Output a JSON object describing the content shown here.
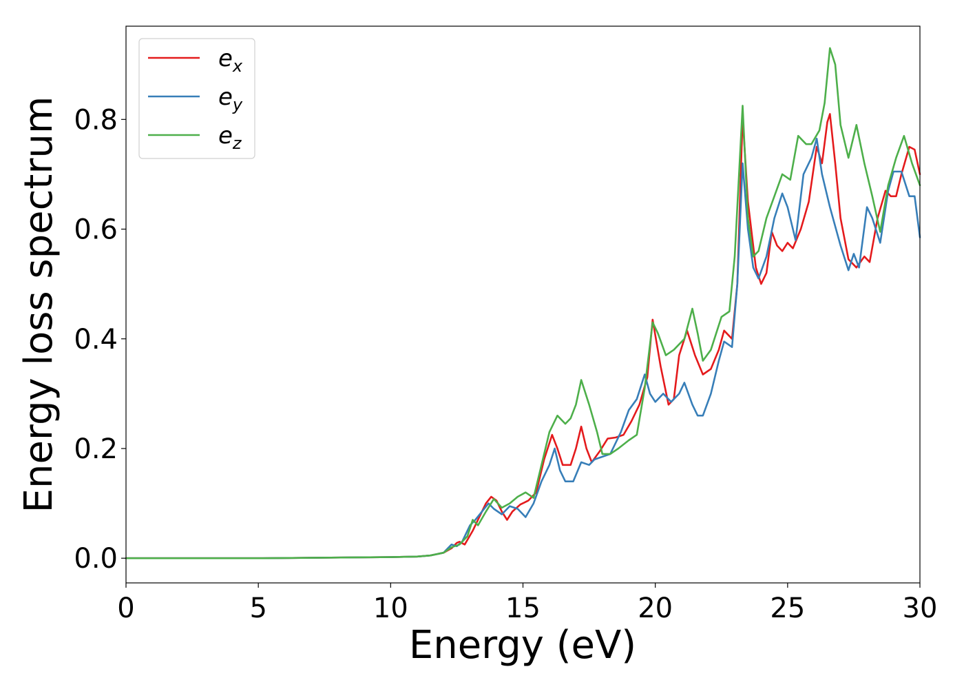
{
  "chart_data": {
    "type": "line",
    "xlabel": "Energy (eV)",
    "ylabel": "Energy loss spectrum",
    "xlim": [
      0,
      30
    ],
    "ylim": [
      -0.045,
      0.97
    ],
    "xticks": [
      0,
      5,
      10,
      15,
      20,
      25,
      30
    ],
    "xtick_labels": [
      "0",
      "5",
      "10",
      "15",
      "20",
      "25",
      "30"
    ],
    "yticks": [
      0.0,
      0.2,
      0.4,
      0.6,
      0.8
    ],
    "ytick_labels": [
      "0.0",
      "0.2",
      "0.4",
      "0.6",
      "0.8"
    ],
    "grid": false,
    "legend_position": "top-left",
    "series": [
      {
        "name": "e",
        "subscript": "x",
        "color": "#e41a1c",
        "points": [
          [
            0,
            0.0
          ],
          [
            5,
            0.0
          ],
          [
            10,
            0.002
          ],
          [
            11,
            0.003
          ],
          [
            11.5,
            0.005
          ],
          [
            12,
            0.01
          ],
          [
            12.3,
            0.018
          ],
          [
            12.5,
            0.028
          ],
          [
            12.6,
            0.03
          ],
          [
            12.8,
            0.025
          ],
          [
            13.1,
            0.05
          ],
          [
            13.4,
            0.08
          ],
          [
            13.6,
            0.1
          ],
          [
            13.8,
            0.112
          ],
          [
            14.0,
            0.105
          ],
          [
            14.2,
            0.085
          ],
          [
            14.4,
            0.07
          ],
          [
            14.6,
            0.085
          ],
          [
            14.9,
            0.098
          ],
          [
            15.2,
            0.105
          ],
          [
            15.5,
            0.12
          ],
          [
            15.8,
            0.18
          ],
          [
            16.1,
            0.225
          ],
          [
            16.3,
            0.2
          ],
          [
            16.5,
            0.17
          ],
          [
            16.8,
            0.17
          ],
          [
            17.0,
            0.2
          ],
          [
            17.2,
            0.24
          ],
          [
            17.4,
            0.2
          ],
          [
            17.6,
            0.175
          ],
          [
            17.9,
            0.195
          ],
          [
            18.2,
            0.218
          ],
          [
            18.5,
            0.22
          ],
          [
            18.8,
            0.225
          ],
          [
            19.1,
            0.25
          ],
          [
            19.4,
            0.28
          ],
          [
            19.7,
            0.33
          ],
          [
            19.9,
            0.435
          ],
          [
            20.2,
            0.35
          ],
          [
            20.5,
            0.28
          ],
          [
            20.7,
            0.29
          ],
          [
            20.9,
            0.37
          ],
          [
            21.2,
            0.415
          ],
          [
            21.5,
            0.37
          ],
          [
            21.8,
            0.335
          ],
          [
            22.1,
            0.345
          ],
          [
            22.4,
            0.38
          ],
          [
            22.6,
            0.415
          ],
          [
            22.9,
            0.4
          ],
          [
            23.1,
            0.5
          ],
          [
            23.3,
            0.805
          ],
          [
            23.5,
            0.65
          ],
          [
            23.8,
            0.53
          ],
          [
            24.0,
            0.5
          ],
          [
            24.2,
            0.52
          ],
          [
            24.4,
            0.595
          ],
          [
            24.6,
            0.57
          ],
          [
            24.8,
            0.56
          ],
          [
            25.0,
            0.575
          ],
          [
            25.2,
            0.565
          ],
          [
            25.5,
            0.6
          ],
          [
            25.8,
            0.65
          ],
          [
            26.1,
            0.75
          ],
          [
            26.3,
            0.72
          ],
          [
            26.5,
            0.795
          ],
          [
            26.6,
            0.81
          ],
          [
            26.8,
            0.72
          ],
          [
            27.0,
            0.62
          ],
          [
            27.3,
            0.545
          ],
          [
            27.6,
            0.53
          ],
          [
            27.9,
            0.55
          ],
          [
            28.1,
            0.54
          ],
          [
            28.4,
            0.62
          ],
          [
            28.7,
            0.67
          ],
          [
            28.9,
            0.66
          ],
          [
            29.1,
            0.66
          ],
          [
            29.3,
            0.7
          ],
          [
            29.6,
            0.75
          ],
          [
            29.8,
            0.745
          ],
          [
            30,
            0.7
          ]
        ]
      },
      {
        "name": "e",
        "subscript": "y",
        "color": "#377eb8",
        "points": [
          [
            0,
            0.0
          ],
          [
            5,
            0.0
          ],
          [
            10,
            0.002
          ],
          [
            11,
            0.003
          ],
          [
            11.5,
            0.005
          ],
          [
            12,
            0.01
          ],
          [
            12.3,
            0.025
          ],
          [
            12.5,
            0.022
          ],
          [
            12.7,
            0.03
          ],
          [
            13.0,
            0.06
          ],
          [
            13.2,
            0.07
          ],
          [
            13.5,
            0.088
          ],
          [
            13.7,
            0.1
          ],
          [
            13.9,
            0.09
          ],
          [
            14.2,
            0.08
          ],
          [
            14.5,
            0.095
          ],
          [
            14.8,
            0.09
          ],
          [
            15.1,
            0.075
          ],
          [
            15.4,
            0.1
          ],
          [
            15.7,
            0.14
          ],
          [
            16.0,
            0.17
          ],
          [
            16.2,
            0.2
          ],
          [
            16.4,
            0.16
          ],
          [
            16.6,
            0.14
          ],
          [
            16.9,
            0.14
          ],
          [
            17.2,
            0.175
          ],
          [
            17.5,
            0.17
          ],
          [
            17.7,
            0.18
          ],
          [
            18.0,
            0.185
          ],
          [
            18.3,
            0.19
          ],
          [
            18.7,
            0.23
          ],
          [
            19.0,
            0.27
          ],
          [
            19.3,
            0.29
          ],
          [
            19.6,
            0.335
          ],
          [
            19.8,
            0.3
          ],
          [
            20.0,
            0.285
          ],
          [
            20.3,
            0.3
          ],
          [
            20.6,
            0.285
          ],
          [
            20.9,
            0.3
          ],
          [
            21.1,
            0.32
          ],
          [
            21.4,
            0.28
          ],
          [
            21.6,
            0.26
          ],
          [
            21.8,
            0.26
          ],
          [
            22.1,
            0.3
          ],
          [
            22.4,
            0.36
          ],
          [
            22.6,
            0.395
          ],
          [
            22.9,
            0.385
          ],
          [
            23.1,
            0.5
          ],
          [
            23.3,
            0.72
          ],
          [
            23.5,
            0.6
          ],
          [
            23.7,
            0.53
          ],
          [
            23.9,
            0.51
          ],
          [
            24.2,
            0.55
          ],
          [
            24.5,
            0.62
          ],
          [
            24.8,
            0.665
          ],
          [
            25.0,
            0.64
          ],
          [
            25.3,
            0.58
          ],
          [
            25.6,
            0.7
          ],
          [
            25.9,
            0.73
          ],
          [
            26.1,
            0.765
          ],
          [
            26.3,
            0.7
          ],
          [
            26.6,
            0.64
          ],
          [
            27.0,
            0.57
          ],
          [
            27.3,
            0.525
          ],
          [
            27.5,
            0.555
          ],
          [
            27.7,
            0.53
          ],
          [
            28.0,
            0.64
          ],
          [
            28.2,
            0.62
          ],
          [
            28.5,
            0.575
          ],
          [
            28.8,
            0.67
          ],
          [
            29.0,
            0.705
          ],
          [
            29.3,
            0.705
          ],
          [
            29.6,
            0.66
          ],
          [
            29.8,
            0.66
          ],
          [
            30,
            0.585
          ]
        ]
      },
      {
        "name": "e",
        "subscript": "z",
        "color": "#4daf4a",
        "points": [
          [
            0,
            0.0
          ],
          [
            5,
            0.0
          ],
          [
            10,
            0.002
          ],
          [
            11,
            0.003
          ],
          [
            11.5,
            0.005
          ],
          [
            12,
            0.01
          ],
          [
            12.3,
            0.02
          ],
          [
            12.6,
            0.025
          ],
          [
            12.9,
            0.04
          ],
          [
            13.1,
            0.07
          ],
          [
            13.3,
            0.06
          ],
          [
            13.6,
            0.085
          ],
          [
            13.9,
            0.108
          ],
          [
            14.2,
            0.092
          ],
          [
            14.5,
            0.1
          ],
          [
            14.8,
            0.112
          ],
          [
            15.1,
            0.12
          ],
          [
            15.4,
            0.11
          ],
          [
            15.7,
            0.17
          ],
          [
            16.0,
            0.23
          ],
          [
            16.3,
            0.26
          ],
          [
            16.6,
            0.245
          ],
          [
            16.8,
            0.255
          ],
          [
            17.0,
            0.28
          ],
          [
            17.2,
            0.325
          ],
          [
            17.5,
            0.28
          ],
          [
            17.8,
            0.23
          ],
          [
            18.0,
            0.19
          ],
          [
            18.3,
            0.19
          ],
          [
            18.6,
            0.2
          ],
          [
            19.0,
            0.215
          ],
          [
            19.3,
            0.225
          ],
          [
            19.6,
            0.31
          ],
          [
            19.9,
            0.43
          ],
          [
            20.1,
            0.41
          ],
          [
            20.4,
            0.37
          ],
          [
            20.7,
            0.38
          ],
          [
            20.9,
            0.39
          ],
          [
            21.1,
            0.4
          ],
          [
            21.4,
            0.455
          ],
          [
            21.6,
            0.41
          ],
          [
            21.8,
            0.36
          ],
          [
            22.1,
            0.38
          ],
          [
            22.3,
            0.41
          ],
          [
            22.5,
            0.44
          ],
          [
            22.8,
            0.45
          ],
          [
            23.0,
            0.55
          ],
          [
            23.3,
            0.825
          ],
          [
            23.5,
            0.62
          ],
          [
            23.7,
            0.55
          ],
          [
            23.9,
            0.56
          ],
          [
            24.2,
            0.62
          ],
          [
            24.5,
            0.66
          ],
          [
            24.8,
            0.7
          ],
          [
            25.1,
            0.69
          ],
          [
            25.4,
            0.77
          ],
          [
            25.7,
            0.755
          ],
          [
            25.9,
            0.755
          ],
          [
            26.2,
            0.78
          ],
          [
            26.4,
            0.83
          ],
          [
            26.6,
            0.93
          ],
          [
            26.8,
            0.9
          ],
          [
            27.0,
            0.79
          ],
          [
            27.3,
            0.73
          ],
          [
            27.6,
            0.79
          ],
          [
            27.9,
            0.72
          ],
          [
            28.2,
            0.66
          ],
          [
            28.5,
            0.595
          ],
          [
            28.8,
            0.68
          ],
          [
            29.1,
            0.73
          ],
          [
            29.4,
            0.77
          ],
          [
            29.7,
            0.72
          ],
          [
            30,
            0.68
          ]
        ]
      }
    ]
  }
}
